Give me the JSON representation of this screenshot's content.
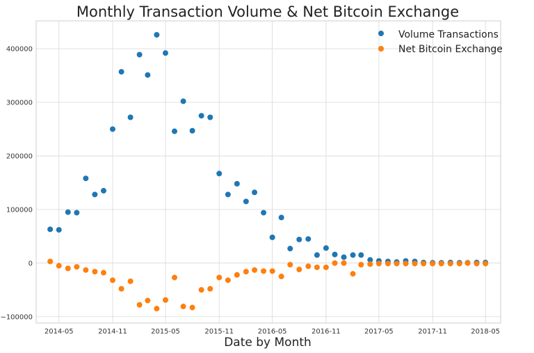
{
  "chart_data": {
    "type": "scatter",
    "title": "Monthly Transaction Volume & Net Bitcoin Exchange",
    "xlabel": "Date by Month",
    "ylabel": "",
    "grid": true,
    "legend_position": "top-right",
    "xlim": [
      "2014-02-12",
      "2018-06-22"
    ],
    "ylim": [
      -112000,
      452000
    ],
    "x_ticks": [
      "2014-05",
      "2014-11",
      "2015-05",
      "2015-11",
      "2016-05",
      "2016-11",
      "2017-05",
      "2017-11",
      "2018-05"
    ],
    "y_ticks": [
      -100000,
      0,
      100000,
      200000,
      300000,
      400000
    ],
    "x": [
      "2014-04",
      "2014-05",
      "2014-06",
      "2014-07",
      "2014-08",
      "2014-09",
      "2014-10",
      "2014-11",
      "2014-12",
      "2015-01",
      "2015-02",
      "2015-03",
      "2015-04",
      "2015-05",
      "2015-06",
      "2015-07",
      "2015-08",
      "2015-09",
      "2015-10",
      "2015-11",
      "2015-12",
      "2016-01",
      "2016-02",
      "2016-03",
      "2016-04",
      "2016-05",
      "2016-06",
      "2016-07",
      "2016-08",
      "2016-09",
      "2016-10",
      "2016-11",
      "2016-12",
      "2017-01",
      "2017-02",
      "2017-03",
      "2017-04",
      "2017-05",
      "2017-06",
      "2017-07",
      "2017-08",
      "2017-09",
      "2017-10",
      "2017-11",
      "2017-12",
      "2018-01",
      "2018-02",
      "2018-03",
      "2018-04",
      "2018-05"
    ],
    "series": [
      {
        "name": "Volume Transactions",
        "color": "#1f77b4",
        "values": [
          63000,
          62000,
          95000,
          94000,
          158000,
          128000,
          135000,
          250000,
          357000,
          272000,
          389000,
          351000,
          426000,
          392000,
          246000,
          302000,
          247000,
          275000,
          272000,
          167000,
          128000,
          148000,
          115000,
          132000,
          94000,
          48000,
          85000,
          27000,
          44000,
          45000,
          15000,
          28000,
          16000,
          11000,
          15000,
          15000,
          6000,
          4000,
          3000,
          2000,
          4000,
          3000,
          1000,
          500,
          500,
          1000,
          500,
          500,
          1000,
          1000
        ]
      },
      {
        "name": "Net Bitcoin Exchange",
        "color": "#ff7f0e",
        "values": [
          3000,
          -5000,
          -10000,
          -7000,
          -13000,
          -16000,
          -18000,
          -32000,
          -48000,
          -34000,
          -78000,
          -70000,
          -85000,
          -69000,
          -27000,
          -81000,
          -83000,
          -50000,
          -48000,
          -27000,
          -32000,
          -22000,
          -16000,
          -13000,
          -15000,
          -15000,
          -25000,
          -3000,
          -12000,
          -6000,
          -8000,
          -8000,
          0,
          0,
          -20000,
          -3000,
          -2000,
          -1000,
          -1000,
          -1000,
          -1000,
          -1000,
          -1000,
          -1000,
          -1000,
          -1000,
          -1000,
          0,
          -1000,
          -1000
        ]
      }
    ]
  }
}
